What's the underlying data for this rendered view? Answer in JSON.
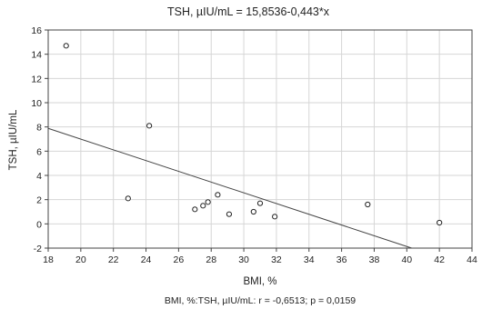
{
  "chart_data": {
    "type": "scatter",
    "title": "TSH, µIU/mL = 15,8536-0,443*x",
    "xlabel": "BMI, %",
    "ylabel": "TSH, µIU/mL",
    "footer": "BMI, %:TSH, µIU/mL:   r = -0,6513; p = 0,0159",
    "xlim": [
      18,
      44
    ],
    "ylim": [
      -2,
      16
    ],
    "x_ticks": [
      18,
      20,
      22,
      24,
      26,
      28,
      30,
      32,
      34,
      36,
      38,
      40,
      42,
      44
    ],
    "y_ticks": [
      -2,
      0,
      2,
      4,
      6,
      8,
      10,
      12,
      14,
      16
    ],
    "grid": true,
    "points": [
      {
        "x": 19.1,
        "y": 14.7
      },
      {
        "x": 22.9,
        "y": 2.1
      },
      {
        "x": 24.2,
        "y": 8.1
      },
      {
        "x": 27.0,
        "y": 1.2
      },
      {
        "x": 27.5,
        "y": 1.5
      },
      {
        "x": 27.8,
        "y": 1.8
      },
      {
        "x": 28.4,
        "y": 2.4
      },
      {
        "x": 29.1,
        "y": 0.8
      },
      {
        "x": 30.6,
        "y": 1.0
      },
      {
        "x": 31.0,
        "y": 1.7
      },
      {
        "x": 31.9,
        "y": 0.6
      },
      {
        "x": 37.6,
        "y": 1.6
      },
      {
        "x": 42.0,
        "y": 0.1
      }
    ],
    "fit_line": {
      "intercept": 15.8536,
      "slope": -0.443
    }
  }
}
